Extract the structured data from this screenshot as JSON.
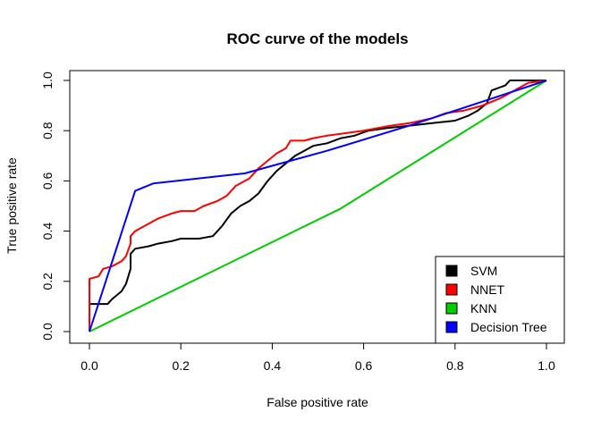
{
  "chart_data": {
    "type": "line",
    "title": "ROC curve of the models",
    "xlabel": "False positive rate",
    "ylabel": "True positive rate",
    "xlim": [
      0,
      1
    ],
    "ylim": [
      0,
      1
    ],
    "xticks": [
      "0.0",
      "0.2",
      "0.4",
      "0.6",
      "0.8",
      "1.0"
    ],
    "yticks": [
      "0.0",
      "0.2",
      "0.4",
      "0.6",
      "0.8",
      "1.0"
    ],
    "legend_position": "bottom-right",
    "grid": false,
    "series": [
      {
        "name": "SVM",
        "color": "#000000",
        "points": [
          [
            0,
            0
          ],
          [
            0,
            0.11
          ],
          [
            0.04,
            0.11
          ],
          [
            0.05,
            0.13
          ],
          [
            0.07,
            0.16
          ],
          [
            0.08,
            0.19
          ],
          [
            0.09,
            0.25
          ],
          [
            0.09,
            0.31
          ],
          [
            0.1,
            0.33
          ],
          [
            0.13,
            0.34
          ],
          [
            0.15,
            0.35
          ],
          [
            0.18,
            0.36
          ],
          [
            0.2,
            0.37
          ],
          [
            0.24,
            0.37
          ],
          [
            0.27,
            0.38
          ],
          [
            0.29,
            0.42
          ],
          [
            0.31,
            0.47
          ],
          [
            0.33,
            0.5
          ],
          [
            0.35,
            0.52
          ],
          [
            0.37,
            0.55
          ],
          [
            0.39,
            0.6
          ],
          [
            0.41,
            0.64
          ],
          [
            0.43,
            0.67
          ],
          [
            0.45,
            0.7
          ],
          [
            0.47,
            0.72
          ],
          [
            0.49,
            0.74
          ],
          [
            0.52,
            0.75
          ],
          [
            0.55,
            0.77
          ],
          [
            0.58,
            0.78
          ],
          [
            0.61,
            0.8
          ],
          [
            0.65,
            0.81
          ],
          [
            0.7,
            0.82
          ],
          [
            0.75,
            0.83
          ],
          [
            0.8,
            0.84
          ],
          [
            0.83,
            0.86
          ],
          [
            0.85,
            0.88
          ],
          [
            0.87,
            0.91
          ],
          [
            0.88,
            0.96
          ],
          [
            0.91,
            0.98
          ],
          [
            0.92,
            1.0
          ],
          [
            1.0,
            1.0
          ]
        ]
      },
      {
        "name": "NNET",
        "color": "#ff0000",
        "points": [
          [
            0,
            0
          ],
          [
            0,
            0.21
          ],
          [
            0.02,
            0.22
          ],
          [
            0.03,
            0.25
          ],
          [
            0.05,
            0.26
          ],
          [
            0.07,
            0.28
          ],
          [
            0.08,
            0.3
          ],
          [
            0.09,
            0.35
          ],
          [
            0.09,
            0.38
          ],
          [
            0.1,
            0.4
          ],
          [
            0.12,
            0.42
          ],
          [
            0.15,
            0.45
          ],
          [
            0.18,
            0.47
          ],
          [
            0.2,
            0.48
          ],
          [
            0.23,
            0.48
          ],
          [
            0.25,
            0.5
          ],
          [
            0.28,
            0.52
          ],
          [
            0.3,
            0.54
          ],
          [
            0.32,
            0.58
          ],
          [
            0.35,
            0.61
          ],
          [
            0.37,
            0.65
          ],
          [
            0.39,
            0.68
          ],
          [
            0.41,
            0.71
          ],
          [
            0.43,
            0.73
          ],
          [
            0.44,
            0.76
          ],
          [
            0.47,
            0.76
          ],
          [
            0.49,
            0.77
          ],
          [
            0.52,
            0.78
          ],
          [
            0.56,
            0.79
          ],
          [
            0.6,
            0.8
          ],
          [
            0.63,
            0.81
          ],
          [
            0.66,
            0.82
          ],
          [
            0.7,
            0.83
          ],
          [
            0.75,
            0.85
          ],
          [
            0.78,
            0.87
          ],
          [
            0.82,
            0.88
          ],
          [
            0.86,
            0.9
          ],
          [
            0.9,
            0.93
          ],
          [
            0.93,
            0.96
          ],
          [
            0.96,
            0.99
          ],
          [
            1.0,
            1.0
          ]
        ]
      },
      {
        "name": "KNN",
        "color": "#00cc00",
        "points": [
          [
            0,
            0
          ],
          [
            0.55,
            0.49
          ],
          [
            1.0,
            1.0
          ]
        ]
      },
      {
        "name": "Decision Tree",
        "color": "#0000ff",
        "points": [
          [
            0,
            0
          ],
          [
            0.1,
            0.56
          ],
          [
            0.14,
            0.59
          ],
          [
            0.34,
            0.63
          ],
          [
            0.4,
            0.66
          ],
          [
            0.52,
            0.72
          ],
          [
            0.7,
            0.82
          ],
          [
            0.9,
            0.94
          ],
          [
            1.0,
            1.0
          ]
        ]
      }
    ]
  }
}
